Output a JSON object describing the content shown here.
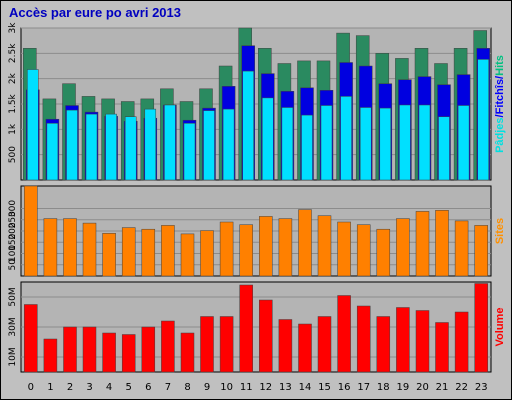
{
  "chart_data": {
    "type": "bar",
    "title": "Accès par eure po avri 2013",
    "categories": [
      "0",
      "1",
      "2",
      "3",
      "4",
      "5",
      "6",
      "7",
      "8",
      "9",
      "10",
      "11",
      "12",
      "13",
      "14",
      "15",
      "16",
      "17",
      "18",
      "19",
      "20",
      "21",
      "22",
      "23"
    ],
    "panels": [
      {
        "id": "hits",
        "ylim": [
          0,
          3000
        ],
        "yticks": [
          "500",
          "1k",
          "1.5k",
          "2k",
          "2.5k",
          "3k"
        ],
        "ytick_values": [
          500,
          1000,
          1500,
          2000,
          2500,
          3000
        ],
        "ylabel_parts": [
          {
            "text": "Pâdjes",
            "color": "#00e0e0"
          },
          {
            "text": "/",
            "color": "#0000ff"
          },
          {
            "text": "Fitchîs",
            "color": "#0000ff"
          },
          {
            "text": "/",
            "color": "#0000ff"
          },
          {
            "text": "Hits",
            "color": "#00c080"
          }
        ],
        "series": [
          {
            "name": "Hits",
            "color": "#2a8a60",
            "values": [
              2600,
              1600,
              1900,
              1650,
              1600,
              1550,
              1600,
              1800,
              1550,
              1800,
              2250,
              3000,
              2600,
              2300,
              2350,
              2350,
              2900,
              2850,
              2500,
              2400,
              2600,
              2300,
              2600,
              2950
            ]
          },
          {
            "name": "Fitchîs",
            "color": "#0000e0",
            "values": [
              1780,
              1200,
              1470,
              1340,
              1260,
              1160,
              1220,
              1480,
              1180,
              1420,
              1850,
              2650,
              2100,
              1750,
              1820,
              1770,
              2320,
              2250,
              1900,
              1980,
              2040,
              1880,
              2080,
              2600
            ]
          },
          {
            "name": "Pâdjes",
            "color": "#00e0ff",
            "values": [
              2180,
              1120,
              1380,
              1300,
              1300,
              1250,
              1400,
              1480,
              1120,
              1370,
              1400,
              2150,
              1620,
              1430,
              1280,
              1470,
              1650,
              1430,
              1420,
              1480,
              1480,
              1250,
              1470,
              2380
            ]
          }
        ]
      },
      {
        "id": "sites",
        "ylim": [
          0,
          400
        ],
        "yticks": [
          "50",
          "100",
          "150",
          "200",
          "250",
          "300"
        ],
        "ytick_values": [
          50,
          100,
          150,
          200,
          250,
          300
        ],
        "ylabel_parts": [
          {
            "text": "Sites",
            "color": "#ff9000"
          }
        ],
        "series": [
          {
            "name": "Sites",
            "color": "#ff8000",
            "values": [
              400,
              255,
              255,
              235,
              190,
              215,
              208,
              225,
              187,
              202,
              240,
              228,
              265,
              255,
              295,
              268,
              240,
              228,
              208,
              255,
              287,
              292,
              245,
              225
            ]
          }
        ]
      },
      {
        "id": "volume",
        "ylim": [
          0,
          60
        ],
        "yticks": [
          "10M",
          "30M",
          "50M"
        ],
        "ytick_values": [
          10,
          30,
          50
        ],
        "ylabel_parts": [
          {
            "text": "Volume",
            "color": "#ff0000"
          }
        ],
        "series": [
          {
            "name": "Volume",
            "color": "#ff0000",
            "values": [
              45,
              22,
              30,
              30,
              26,
              25,
              30,
              34,
              26,
              37,
              37,
              58,
              48,
              35,
              32,
              37,
              51,
              44,
              37,
              43,
              41,
              33,
              40,
              59
            ]
          }
        ]
      }
    ]
  }
}
